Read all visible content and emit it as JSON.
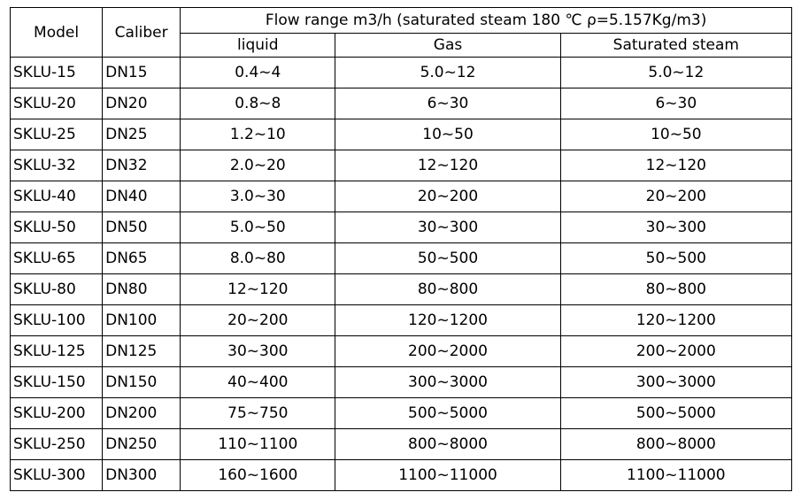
{
  "table": {
    "headers": {
      "model": "Model",
      "caliber": "Caliber",
      "flow_range": "Flow range m3/h (saturated steam 180 ℃ ρ=5.157Kg/m3)",
      "liquid": "liquid",
      "gas": "Gas",
      "saturated_steam": "Saturated steam"
    },
    "rows": [
      {
        "model": "SKLU-15",
        "caliber": "DN15",
        "liquid": "0.4~4",
        "gas": "5.0~12",
        "steam": "5.0~12"
      },
      {
        "model": "SKLU-20",
        "caliber": "DN20",
        "liquid": "0.8~8",
        "gas": "6~30",
        "steam": "6~30"
      },
      {
        "model": "SKLU-25",
        "caliber": "DN25",
        "liquid": "1.2~10",
        "gas": "10~50",
        "steam": "10~50"
      },
      {
        "model": "SKLU-32",
        "caliber": "DN32",
        "liquid": "2.0~20",
        "gas": "12~120",
        "steam": "12~120"
      },
      {
        "model": "SKLU-40",
        "caliber": "DN40",
        "liquid": "3.0~30",
        "gas": "20~200",
        "steam": "20~200"
      },
      {
        "model": "SKLU-50",
        "caliber": "DN50",
        "liquid": "5.0~50",
        "gas": "30~300",
        "steam": "30~300"
      },
      {
        "model": "SKLU-65",
        "caliber": "DN65",
        "liquid": "8.0~80",
        "gas": "50~500",
        "steam": "50~500"
      },
      {
        "model": "SKLU-80",
        "caliber": "DN80",
        "liquid": "12~120",
        "gas": "80~800",
        "steam": "80~800"
      },
      {
        "model": "SKLU-100",
        "caliber": "DN100",
        "liquid": "20~200",
        "gas": "120~1200",
        "steam": "120~1200"
      },
      {
        "model": "SKLU-125",
        "caliber": "DN125",
        "liquid": "30~300",
        "gas": "200~2000",
        "steam": "200~2000"
      },
      {
        "model": "SKLU-150",
        "caliber": "DN150",
        "liquid": "40~400",
        "gas": "300~3000",
        "steam": "300~3000"
      },
      {
        "model": "SKLU-200",
        "caliber": "DN200",
        "liquid": "75~750",
        "gas": "500~5000",
        "steam": "500~5000"
      },
      {
        "model": "SKLU-250",
        "caliber": "DN250",
        "liquid": "110~1100",
        "gas": "800~8000",
        "steam": "800~8000"
      },
      {
        "model": "SKLU-300",
        "caliber": "DN300",
        "liquid": "160~1600",
        "gas": "1100~11000",
        "steam": "1100~11000"
      }
    ]
  }
}
